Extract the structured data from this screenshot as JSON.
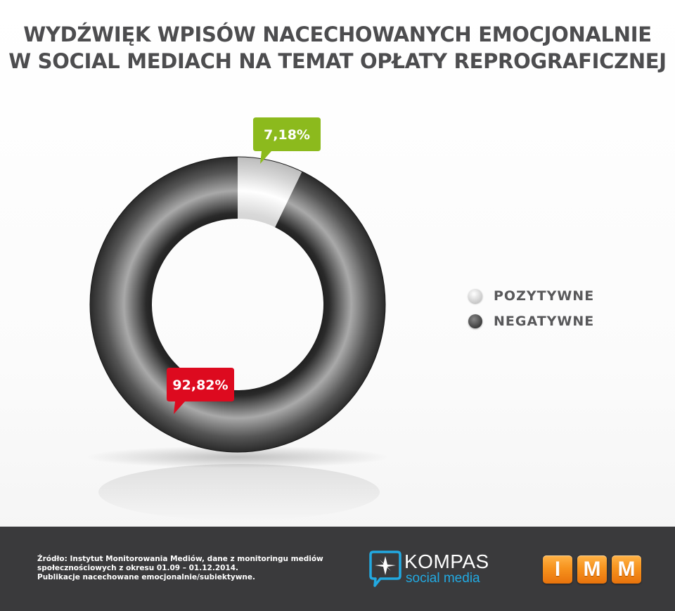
{
  "chart_data": {
    "type": "pie",
    "title_lines": [
      "WYDŹWIĘK WPISÓW NACECHOWANYCH EMOCJONALNIE",
      "W SOCIAL MEDIACH NA TEMAT OPŁATY REPROGRAFICZNEJ"
    ],
    "categories": [
      "POZYTYWNE",
      "NEGATYWNE"
    ],
    "values": [
      7.18,
      92.82
    ],
    "data_labels": [
      "7,18%",
      "92,82%"
    ],
    "series_colors": [
      "#cfcfcf",
      "#3c3c3c"
    ],
    "label_colors": [
      "#8cba1d",
      "#dd0a1f"
    ],
    "legend_position": "right"
  },
  "footer": {
    "source_lines": [
      "Źródło: Instytut Monitorowania Mediów, dane z monitoringu mediów",
      "społecznościowych z okresu 01.09 – 01.12.2014.",
      "Publikacje nacechowane emocjonalnie/subiektywne."
    ],
    "kompas_name": "KOMPAS",
    "kompas_sub": "social media",
    "imm_letters": [
      "I",
      "M",
      "M"
    ],
    "kompas_color": "#22a9e1",
    "imm_color": "#f7931e"
  }
}
